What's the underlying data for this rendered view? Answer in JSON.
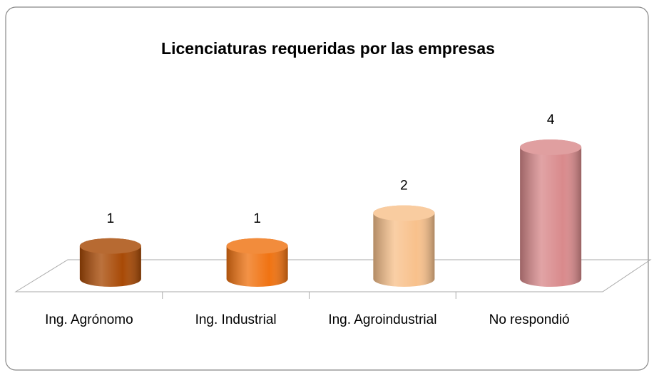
{
  "chart_data": {
    "type": "bar",
    "title": "Licenciaturas requeridas por las empresas",
    "categories": [
      "Ing. Agrónomo",
      "Ing. Industrial",
      "Ing. Agroindustrial",
      "No respondió"
    ],
    "values": [
      1,
      1,
      2,
      4
    ],
    "colors": [
      "#a84a06",
      "#f07312",
      "#f8c18c",
      "#d98a8c"
    ]
  }
}
